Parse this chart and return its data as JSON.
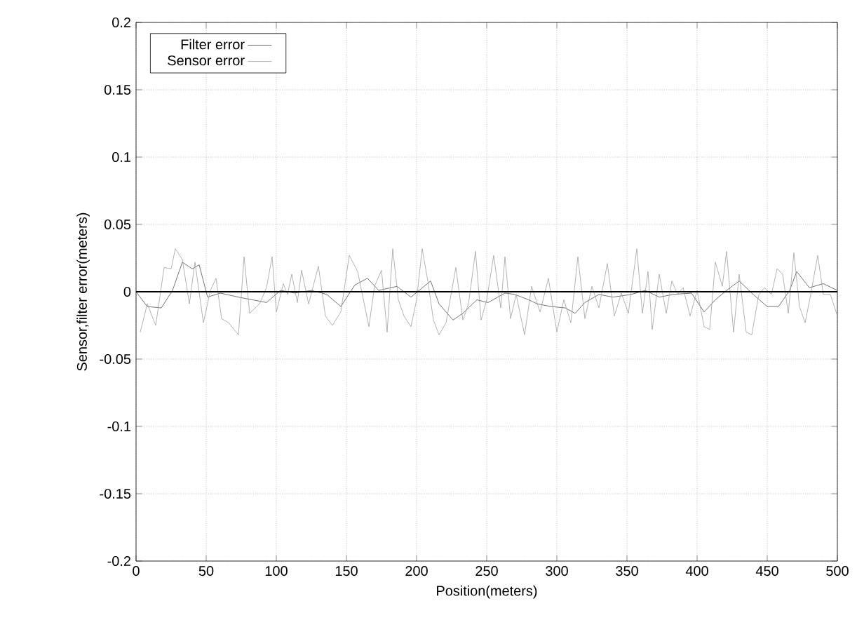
{
  "chart_data": {
    "type": "line",
    "xlabel": "Position(meters)",
    "ylabel": "Sensor,filter error(meters)",
    "xlim": [
      0,
      500
    ],
    "ylim": [
      -0.2,
      0.2
    ],
    "xticks": [
      0,
      50,
      100,
      150,
      200,
      250,
      300,
      350,
      400,
      450,
      500
    ],
    "yticks": [
      -0.2,
      -0.15,
      -0.1,
      -0.05,
      0,
      0.05,
      0.1,
      0.15,
      0.2
    ],
    "grid": true,
    "legend": "top left",
    "marker": "none",
    "line_style": "solid",
    "ref_lines": [
      {
        "axis": "y",
        "value": 0,
        "color": "#000000"
      }
    ],
    "series": [
      {
        "name": "Filter error",
        "color": "#505050",
        "x": [
          0,
          8,
          18,
          26,
          33,
          40,
          45,
          51,
          60,
          73,
          83,
          93,
          103,
          113,
          125,
          136,
          146,
          156,
          165,
          173,
          186,
          196,
          210,
          216,
          226,
          233,
          243,
          251,
          263,
          270,
          280,
          286,
          296,
          306,
          313,
          320,
          330,
          340,
          353,
          363,
          373,
          383,
          396,
          405,
          413,
          421,
          430,
          440,
          450,
          458,
          466,
          471,
          480,
          490,
          500
        ],
        "values": [
          0,
          -0.011,
          -0.012,
          0.001,
          0.022,
          0.017,
          0.02,
          -0.004,
          -0.001,
          -0.004,
          -0.006,
          -0.008,
          0.001,
          -0.001,
          0.001,
          -0.002,
          -0.011,
          0.005,
          0.01,
          0.001,
          0.004,
          -0.004,
          0.008,
          -0.009,
          -0.021,
          -0.016,
          -0.006,
          -0.008,
          -0.001,
          -0.002,
          -0.006,
          -0.009,
          -0.011,
          -0.012,
          -0.016,
          -0.008,
          -0.002,
          -0.004,
          -0.002,
          0.001,
          -0.004,
          -0.002,
          -0.001,
          -0.015,
          -0.006,
          0.001,
          0.008,
          -0.002,
          -0.011,
          -0.011,
          0.001,
          0.015,
          0.003,
          0.006,
          0.001
        ]
      },
      {
        "name": "Sensor error",
        "color": "#a0a0a0",
        "x": [
          3,
          8,
          14,
          20,
          25,
          28,
          33,
          38,
          42,
          48,
          53,
          57,
          61,
          66,
          73,
          77,
          81,
          88,
          93,
          97,
          100,
          105,
          108,
          111,
          115,
          118,
          123,
          130,
          135,
          140,
          146,
          152,
          158,
          166,
          170,
          175,
          179,
          183,
          187,
          191,
          196,
          200,
          204,
          208,
          212,
          216,
          221,
          228,
          233,
          237,
          242,
          246,
          250,
          255,
          260,
          263,
          267,
          271,
          277,
          282,
          288,
          294,
          300,
          305,
          310,
          315,
          320,
          325,
          330,
          336,
          341,
          346,
          351,
          357,
          361,
          365,
          368,
          373,
          378,
          382,
          386,
          390,
          395,
          400,
          405,
          409,
          413,
          418,
          421,
          426,
          430,
          435,
          439,
          444,
          448,
          453,
          457,
          461,
          465,
          469,
          473,
          477,
          481,
          486,
          490,
          495,
          500
        ],
        "values": [
          -0.03,
          -0.009,
          -0.025,
          0.018,
          0.017,
          0.032,
          0.024,
          -0.009,
          0.022,
          -0.023,
          0.001,
          0.01,
          -0.02,
          -0.023,
          -0.032,
          0.026,
          -0.016,
          -0.009,
          0.003,
          0.026,
          -0.015,
          0.006,
          -0.002,
          0.013,
          -0.008,
          0.016,
          -0.009,
          0.019,
          -0.018,
          -0.025,
          -0.015,
          0.027,
          0.015,
          -0.026,
          0.004,
          0.016,
          -0.03,
          0.032,
          -0.006,
          -0.018,
          -0.026,
          -0.006,
          0.032,
          0.008,
          -0.021,
          -0.032,
          -0.023,
          0.018,
          -0.021,
          -0.009,
          0.03,
          -0.021,
          -0.006,
          0.027,
          -0.012,
          0.026,
          -0.02,
          -0.002,
          -0.032,
          0.004,
          -0.015,
          0.01,
          -0.03,
          -0.006,
          -0.023,
          0.026,
          -0.02,
          0.004,
          -0.012,
          0.021,
          -0.018,
          -0.001,
          -0.016,
          0.032,
          -0.016,
          0.015,
          -0.028,
          0.013,
          -0.016,
          0.008,
          -0.002,
          0.003,
          -0.018,
          0.001,
          -0.026,
          -0.028,
          0.022,
          0.004,
          0.03,
          -0.03,
          0.013,
          -0.03,
          -0.032,
          -0.002,
          0.003,
          -0.002,
          0.017,
          0.013,
          -0.016,
          0.029,
          -0.011,
          -0.023,
          -0.002,
          0.027,
          -0.002,
          -0.002,
          -0.018
        ]
      }
    ]
  }
}
